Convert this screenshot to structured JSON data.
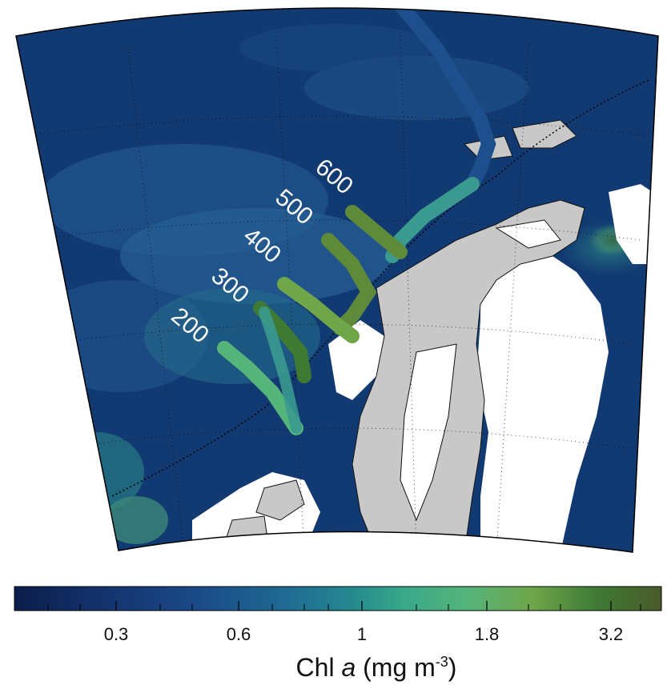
{
  "map": {
    "line_labels": [
      "200",
      "300",
      "400",
      "500",
      "600"
    ]
  },
  "colorbar": {
    "ticks": [
      "0.3",
      "0.6",
      "1",
      "1.8",
      "3.2"
    ],
    "title_prefix": "Chl ",
    "title_var": "a",
    "title_units": " (mg m",
    "title_exp": "-3",
    "title_close": ")",
    "colors": [
      "#0b1e4b",
      "#13306a",
      "#1a4a88",
      "#1f6a93",
      "#24888f",
      "#38a88a",
      "#55b47a",
      "#6fa64a",
      "#3f7a35",
      "#4a5a2a"
    ]
  },
  "colors": {
    "ocean": "#123a72",
    "ocean_light": "#2d6da0",
    "land": "#c8c8c8",
    "no_data": "#ffffff",
    "track_green": "#5e8a3a",
    "track_teal": "#3a9a8f",
    "track_blue": "#1d4f8c"
  }
}
